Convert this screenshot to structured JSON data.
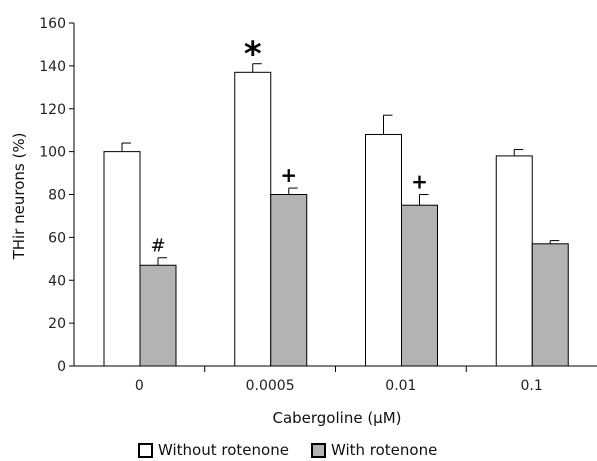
{
  "chart_data": {
    "type": "bar",
    "categories": [
      "0",
      "0.0005",
      "0.01",
      "0.1"
    ],
    "series": [
      {
        "name": "Without rotenone",
        "values": [
          100,
          137,
          108,
          98
        ],
        "errors": [
          4,
          4,
          9,
          3
        ],
        "color": "#ffffff"
      },
      {
        "name": "With rotenone",
        "values": [
          47,
          80,
          75,
          57
        ],
        "errors": [
          3.5,
          3,
          5,
          1.5
        ],
        "color": "#b3b3b3"
      }
    ],
    "xlabel": "Cabergoline (μM)",
    "ylabel": "THir neurons (%)",
    "ylim": [
      0,
      160
    ],
    "yticks": [
      "0",
      "20",
      "40",
      "60",
      "80",
      "100",
      "120",
      "140",
      "160"
    ],
    "grid": false,
    "legend_position": "bottom",
    "annotations": [
      {
        "category": "0.0005",
        "series": "Without rotenone",
        "text": "*"
      },
      {
        "category": "0",
        "series": "With rotenone",
        "text": "#"
      },
      {
        "category": "0.0005",
        "series": "With rotenone",
        "text": "+"
      },
      {
        "category": "0.01",
        "series": "With rotenone",
        "text": "+"
      }
    ]
  }
}
